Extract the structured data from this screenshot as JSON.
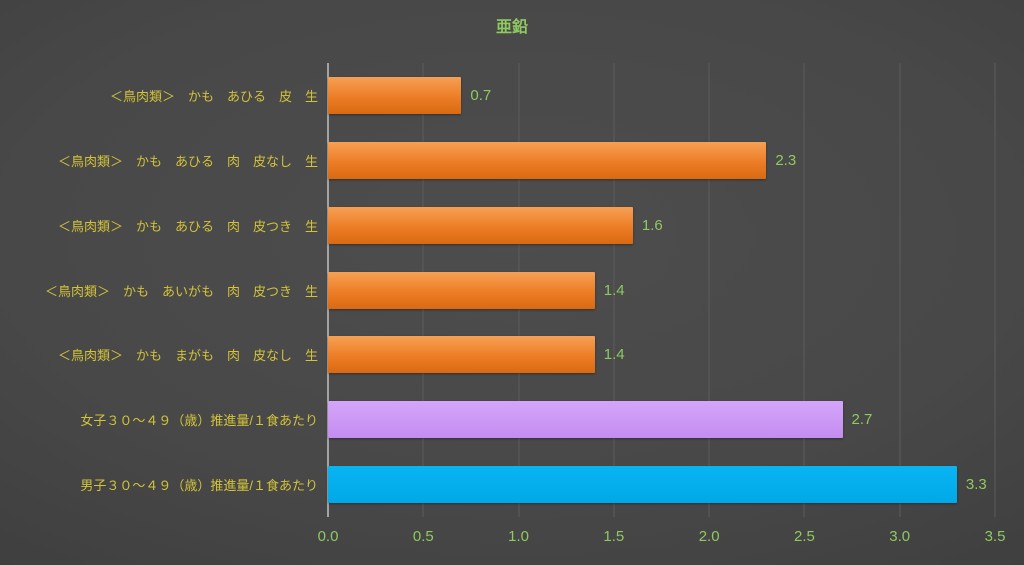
{
  "chart_data": {
    "type": "bar",
    "orientation": "horizontal",
    "title": "亜鉛",
    "categories": [
      "＜鳥肉類＞　かも　あひる　皮　生",
      "＜鳥肉類＞　かも　あひる　肉　皮なし　生",
      "＜鳥肉類＞　かも　あひる　肉　皮つき　生",
      "＜鳥肉類＞　かも　あいがも　肉　皮つき　生",
      "＜鳥肉類＞　かも　まがも　肉　皮なし　生",
      "女子３０～４９（歳）推進量/１食あたり",
      "男子３０～４９（歳）推進量/１食あたり"
    ],
    "values": [
      0.7,
      2.3,
      1.6,
      1.4,
      1.4,
      2.7,
      3.3
    ],
    "value_labels": [
      "0.7",
      "2.3",
      "1.6",
      "1.4",
      "1.4",
      "2.7",
      "3.3"
    ],
    "bar_styles": [
      "orange",
      "orange",
      "orange",
      "orange",
      "orange",
      "purple",
      "blue"
    ],
    "xlim": [
      0,
      3.5
    ],
    "x_ticks": [
      "0.0",
      "0.5",
      "1.0",
      "1.5",
      "2.0",
      "2.5",
      "3.0",
      "3.5"
    ],
    "grid": "vertical",
    "legend": "none",
    "colors": {
      "title_green": "#8fc961",
      "value_green": "#8fc961",
      "tick_green": "#8fc961",
      "category_yellow": "#d2c339",
      "gridline": "#5c5c5c",
      "axis_line": "#a3a3a3",
      "orange_top": "#f6a055",
      "orange_mid": "#ec7d26",
      "orange_bottom": "#d96a12",
      "purple_top": "#d5a5fa",
      "purple_bottom": "#c48df0",
      "blue_top": "#0ab4f2",
      "blue_bottom": "#00a8e8"
    }
  }
}
